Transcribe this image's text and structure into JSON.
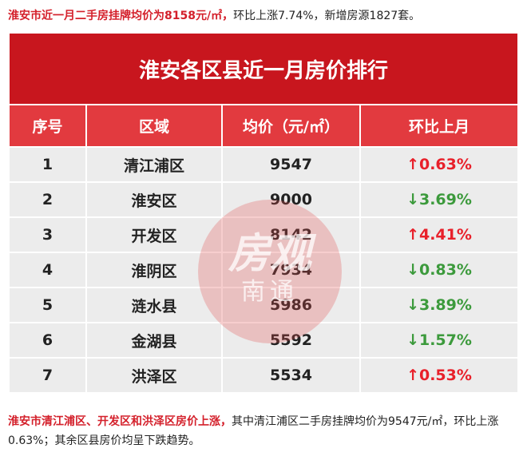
{
  "intro": {
    "highlight": "淮安市近一月二手房挂牌均价为8158元/㎡，",
    "text": "环比上涨7.74%，新增房源1827套。"
  },
  "table": {
    "title": "淮安各区县近一月房价排行",
    "header": [
      "序号",
      "区域",
      "均价（元/㎡）",
      "环比上月"
    ],
    "rows": [
      [
        1,
        "清江浦区",
        9547,
        "↑0.63%"
      ],
      [
        2,
        "淮安区",
        9000,
        "↓3.69%"
      ],
      [
        3,
        "开发区",
        8142,
        "↑4.41%"
      ],
      [
        4,
        "淮阴区",
        7934,
        "↓0.83%"
      ],
      [
        5,
        "涟水县",
        5986,
        "↓3.89%"
      ],
      [
        6,
        "金湖县",
        5592,
        "↓1.57%"
      ],
      [
        7,
        "洪泽区",
        5534,
        "↑0.53%"
      ]
    ],
    "up_color": "#e8202a",
    "down_color": "#3c9a3c"
  },
  "watermark": {
    "top": "房观",
    "bottom": "南通"
  },
  "summary": {
    "highlight": "淮安市清江浦区、开发区和洪泽区房价上涨，",
    "text": "其中清江浦区二手房挂牌均价为9547元/㎡，环比上涨0.63%；其余区县房价均呈下跌趋势。"
  }
}
